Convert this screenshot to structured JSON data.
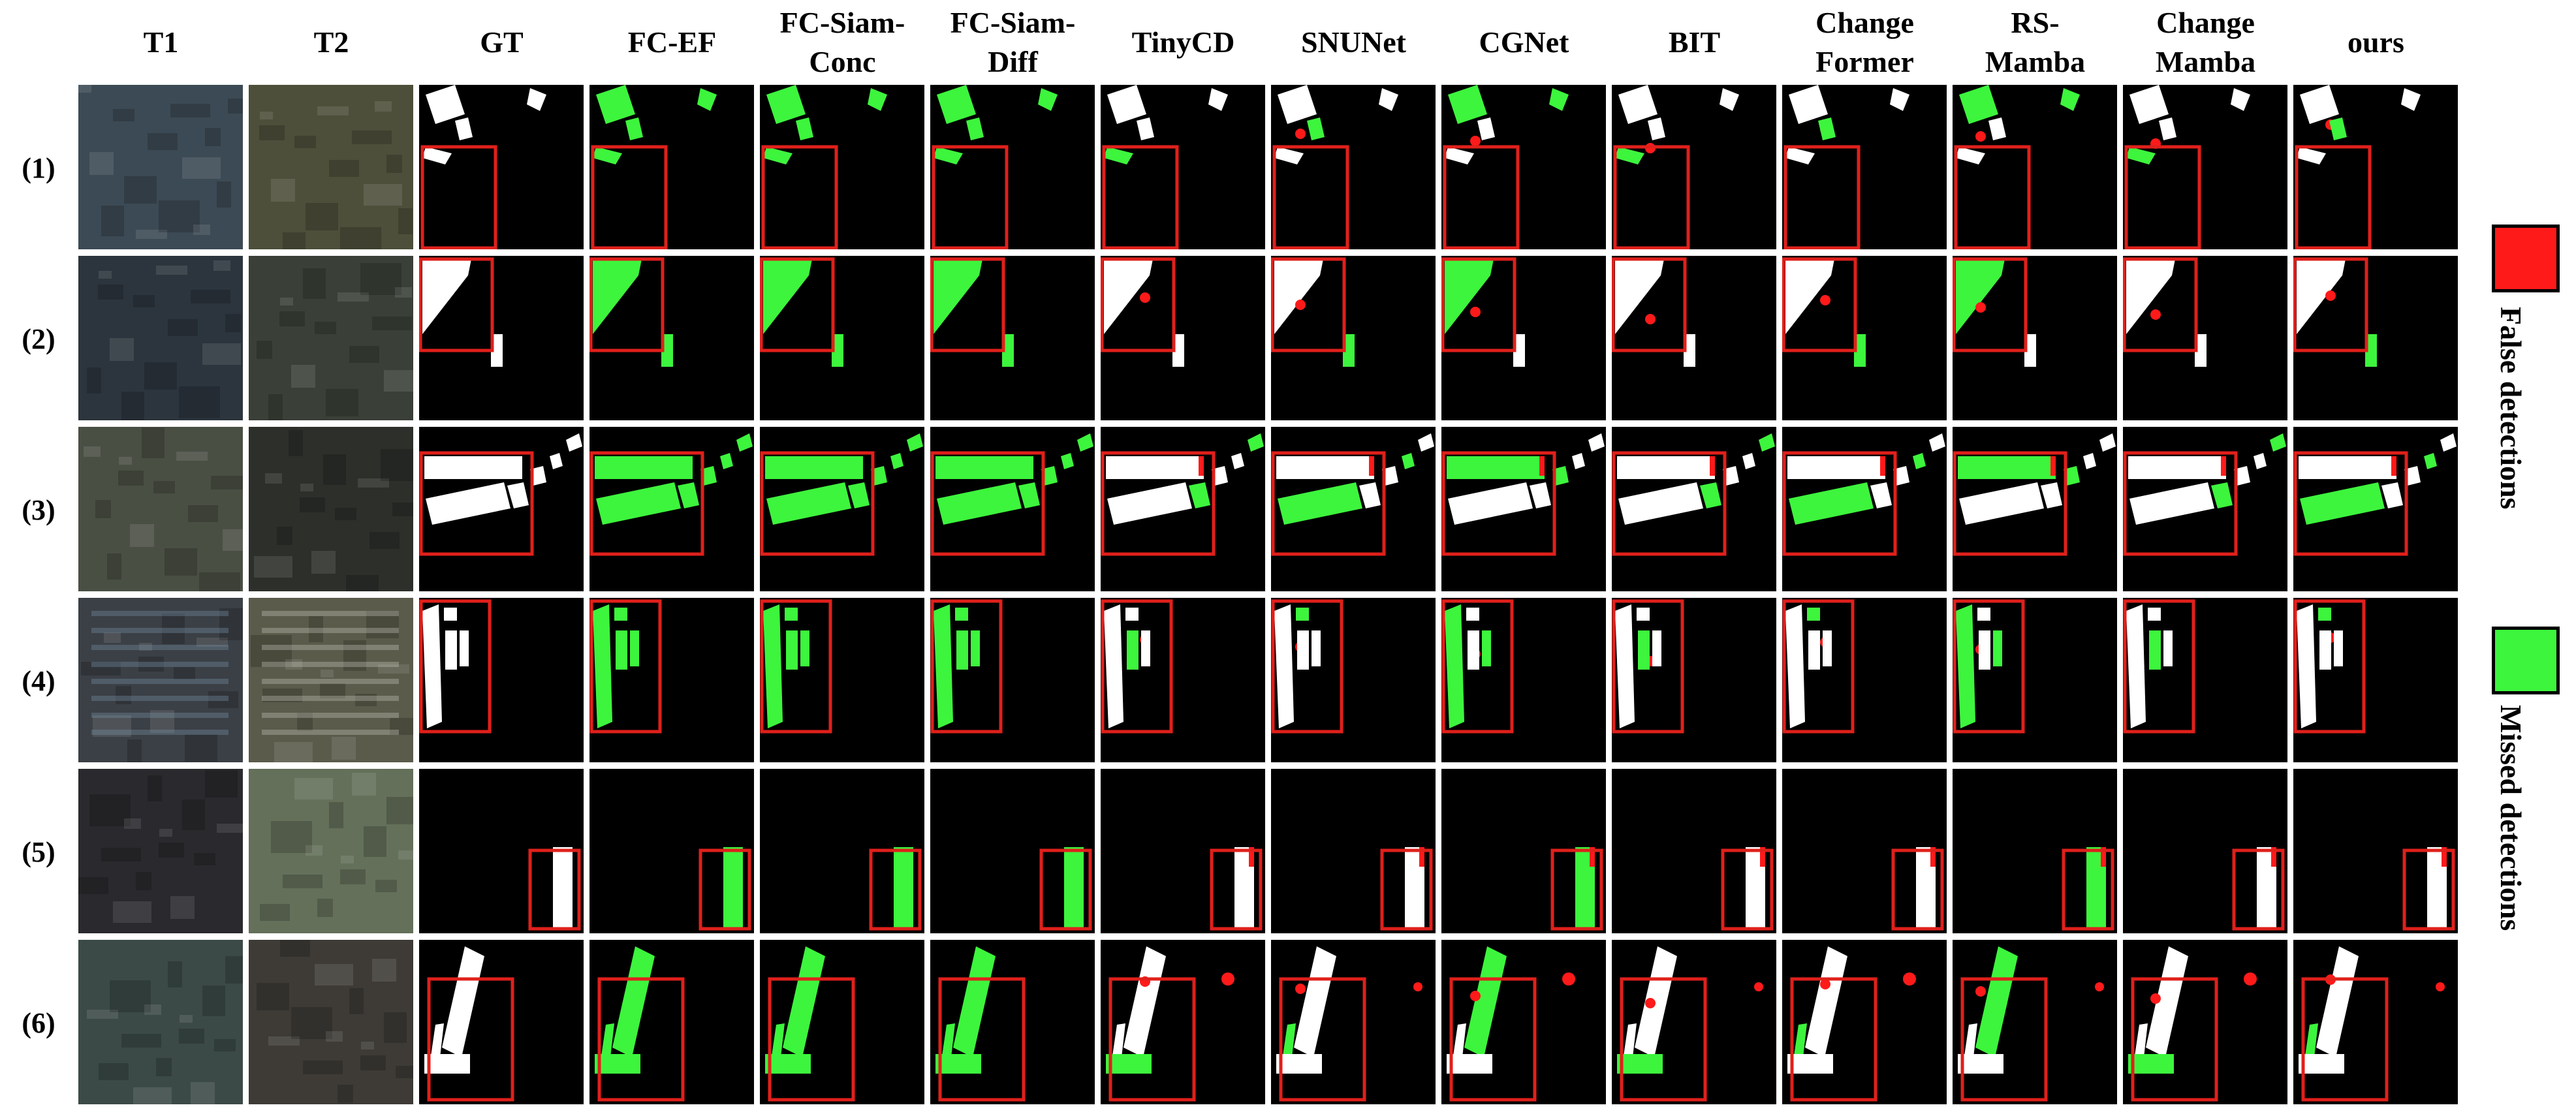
{
  "columns": [
    "T1",
    "T2",
    "GT",
    "FC-EF",
    "FC-Siam-\nConc",
    "FC-Siam-\nDiff",
    "TinyCD",
    "SNUNet",
    "CGNet",
    "BIT",
    "Change\nFormer",
    "RS-\nMamba",
    "Change\nMamba",
    "ours"
  ],
  "rows": [
    "(1)",
    "(2)",
    "(3)",
    "(4)",
    "(5)",
    "(6)"
  ],
  "legend": [
    {
      "label": "False detections",
      "color": "#ff1a1a"
    },
    {
      "label": "Missed detections",
      "color": "#3df53d"
    }
  ],
  "colors": {
    "background": "#000000",
    "change": "#ffffff",
    "false_detection": "#ff1a1a",
    "missed_detection": "#3df53d",
    "highlight_box": "#e0201b"
  }
}
